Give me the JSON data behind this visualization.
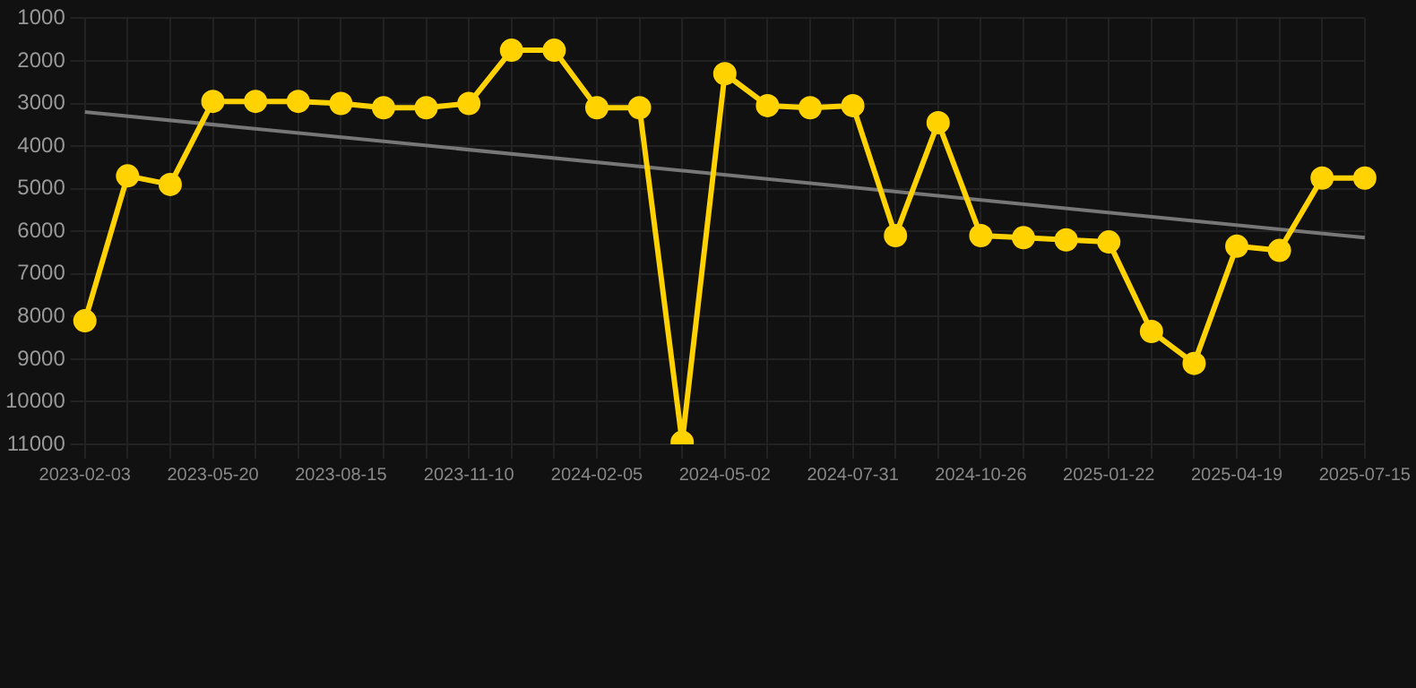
{
  "chart_data": {
    "type": "line",
    "categories": [
      "2023-02-03",
      null,
      null,
      "2023-05-20",
      null,
      null,
      "2023-08-15",
      null,
      null,
      "2023-11-10",
      null,
      null,
      "2024-02-05",
      null,
      null,
      "2024-05-02",
      null,
      null,
      "2024-07-31",
      null,
      null,
      "2024-10-26",
      null,
      null,
      "2025-01-22",
      null,
      null,
      "2025-04-19",
      null,
      null,
      "2025-07-15"
    ],
    "series": [
      {
        "color": "#ffd200",
        "marker": "circle",
        "values": [
          8100,
          4700,
          4900,
          2950,
          2950,
          2950,
          3000,
          3100,
          3100,
          3000,
          1750,
          1750,
          3100,
          3100,
          10950,
          2300,
          3050,
          3100,
          3050,
          6100,
          3450,
          6100,
          6150,
          6200,
          6250,
          8350,
          9100,
          6350,
          6450,
          4750,
          4750
        ]
      },
      {
        "color": "#777777",
        "marker": "none",
        "values": [
          3200,
          null,
          null,
          null,
          null,
          null,
          null,
          null,
          null,
          null,
          null,
          null,
          null,
          null,
          null,
          null,
          null,
          null,
          null,
          null,
          null,
          null,
          null,
          null,
          null,
          null,
          null,
          null,
          null,
          null,
          6150
        ]
      }
    ],
    "ylim": [
      11000,
      1000
    ],
    "yticks": [
      1000,
      2000,
      3000,
      4000,
      5000,
      6000,
      7000,
      8000,
      9000,
      10000,
      11000
    ],
    "grid": true,
    "legend": false
  }
}
